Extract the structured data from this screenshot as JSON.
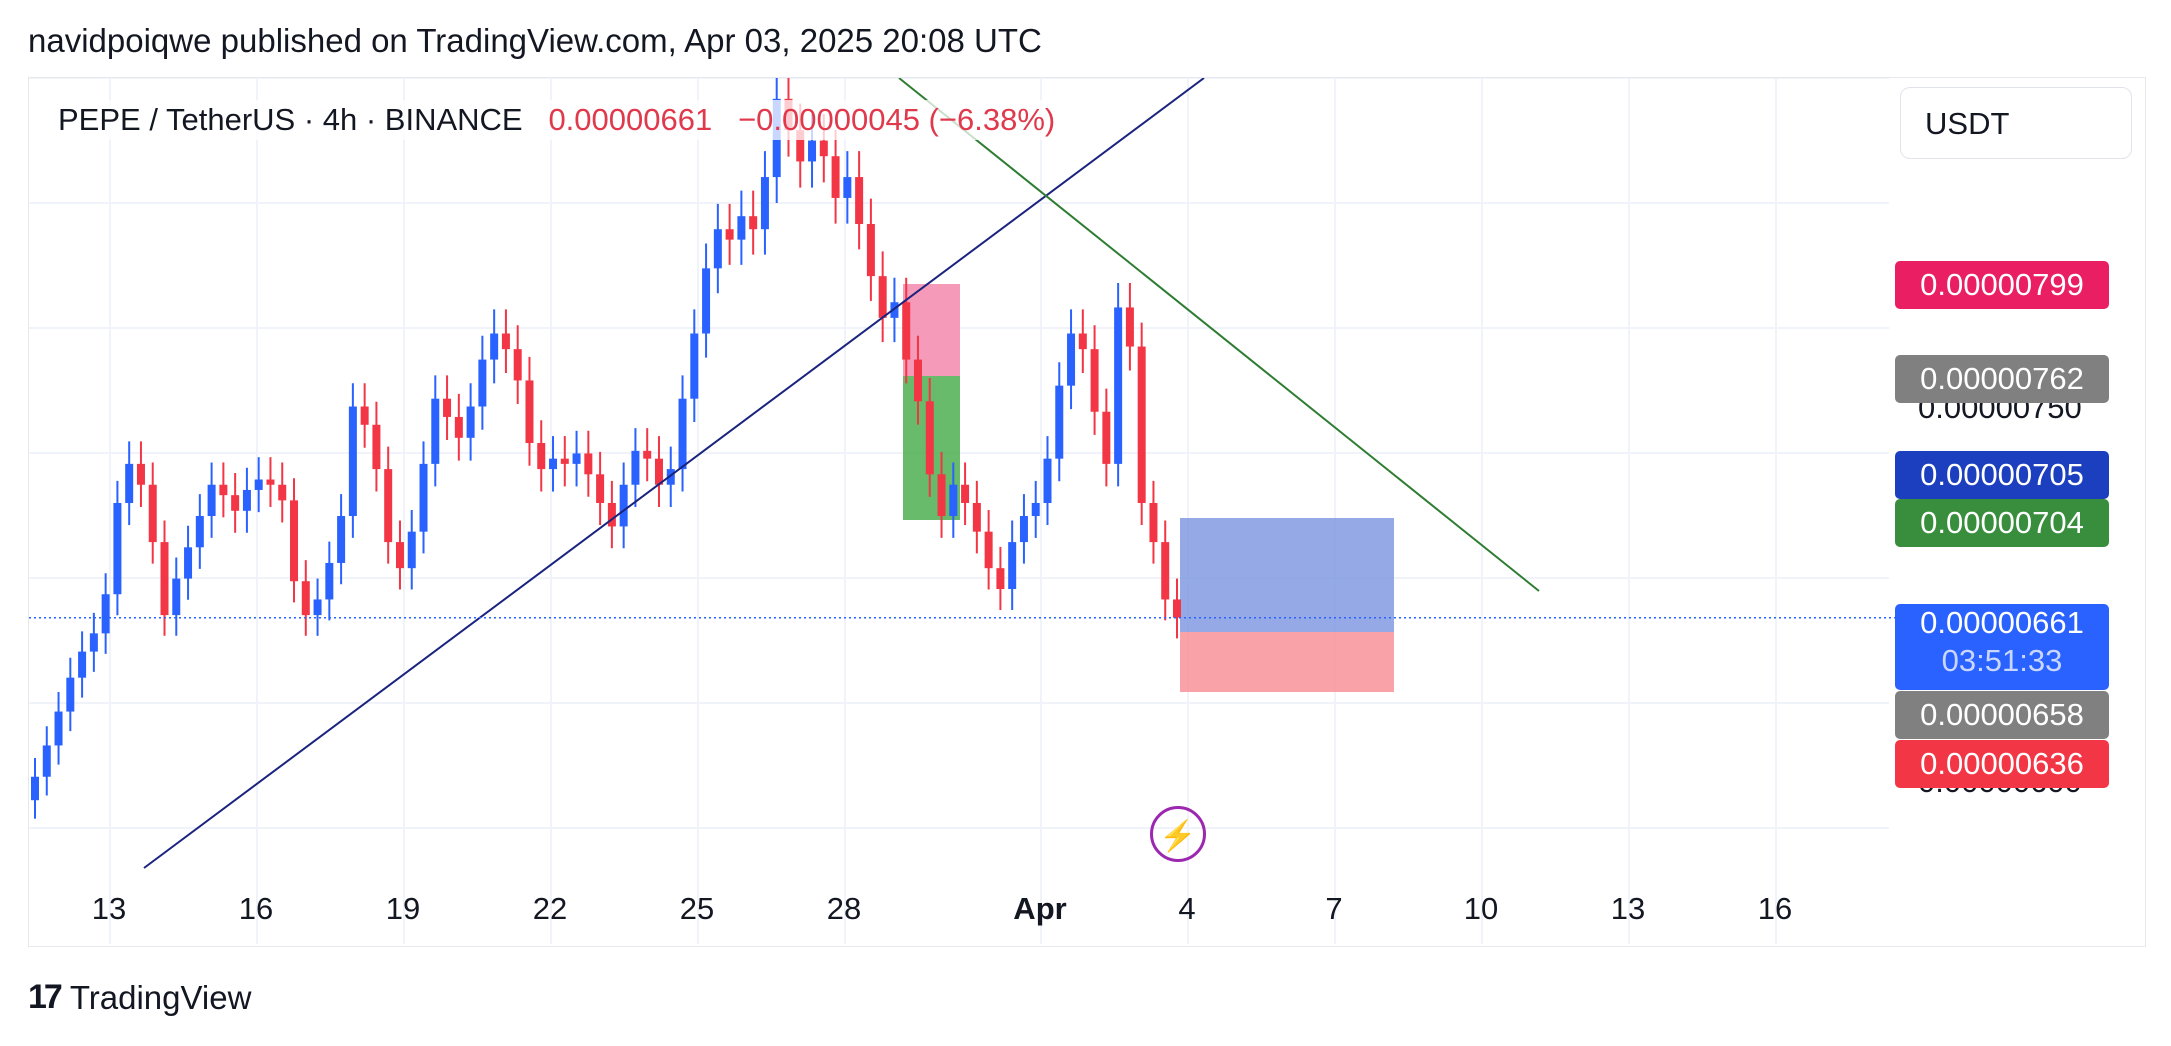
{
  "header": {
    "text": "navidpoiqwe published on TradingView.com, Apr 03, 2025 20:08 UTC"
  },
  "legend": {
    "symbol": "PEPE / TetherUS · 4h · BINANCE",
    "price": "0.00000661",
    "change": "−0.00000045 (−6.38%)"
  },
  "currency": "USDT",
  "footer": {
    "brand": "TradingView"
  },
  "icons": {
    "lightning": "lightning-icon"
  },
  "price_tags": [
    {
      "value": "0.00000799",
      "color": "#e91e63"
    },
    {
      "value": "0.00000762",
      "color": "#808080"
    },
    {
      "value": "0.00000705",
      "color": "#1c3fbf"
    },
    {
      "value": "0.00000704",
      "color": "#388e3c"
    },
    {
      "value": "0.00000661",
      "sub": "03:51:33",
      "color": "#2962ff"
    },
    {
      "value": "0.00000658",
      "color": "#808080"
    },
    {
      "value": "0.00000636",
      "color": "#f23645"
    }
  ],
  "y_axis_labels": [
    "0.00000750",
    "0.00000600"
  ],
  "chart_data": {
    "type": "candlestick",
    "x_tick_labels": [
      "13",
      "16",
      "19",
      "22",
      "25",
      "28",
      "Apr",
      "4",
      "7",
      "10",
      "13",
      "16"
    ],
    "y_range": [
      5.65e-06,
      8.68e-06
    ],
    "colors": {
      "up": "#2962ff",
      "down": "#f23645"
    },
    "last_price": 6.61e-06,
    "closes": [
      6e-06,
      6.12e-06,
      6.25e-06,
      6.38e-06,
      6.48e-06,
      6.55e-06,
      6.7e-06,
      7.05e-06,
      7.2e-06,
      7.12e-06,
      6.9e-06,
      6.62e-06,
      6.76e-06,
      6.88e-06,
      7e-06,
      7.12e-06,
      7.08e-06,
      7.02e-06,
      7.1e-06,
      7.14e-06,
      7.12e-06,
      7.06e-06,
      6.75e-06,
      6.62e-06,
      6.68e-06,
      6.82e-06,
      7e-06,
      7.42e-06,
      7.35e-06,
      7.18e-06,
      6.9e-06,
      6.8e-06,
      6.94e-06,
      7.2e-06,
      7.45e-06,
      7.38e-06,
      7.3e-06,
      7.42e-06,
      7.6e-06,
      7.7e-06,
      7.64e-06,
      7.52e-06,
      7.28e-06,
      7.18e-06,
      7.22e-06,
      7.2e-06,
      7.24e-06,
      7.16e-06,
      7.05e-06,
      6.96e-06,
      7.12e-06,
      7.25e-06,
      7.22e-06,
      7.12e-06,
      7.18e-06,
      7.45e-06,
      7.7e-06,
      7.95e-06,
      8.1e-06,
      8.06e-06,
      8.15e-06,
      8.1e-06,
      8.3e-06,
      8.6e-06,
      8.48e-06,
      8.36e-06,
      8.44e-06,
      8.38e-06,
      8.22e-06,
      8.3e-06,
      8.12e-06,
      7.92e-06,
      7.76e-06,
      7.82e-06,
      7.6e-06,
      7.44e-06,
      7.16e-06,
      7e-06,
      7.12e-06,
      7.05e-06,
      6.94e-06,
      6.8e-06,
      6.72e-06,
      6.9e-06,
      7e-06,
      7.05e-06,
      7.22e-06,
      7.5e-06,
      7.7e-06,
      7.64e-06,
      7.4e-06,
      7.2e-06,
      7.8e-06,
      7.65e-06,
      7.05e-06,
      6.9e-06,
      6.68e-06,
      6.61e-06
    ]
  }
}
